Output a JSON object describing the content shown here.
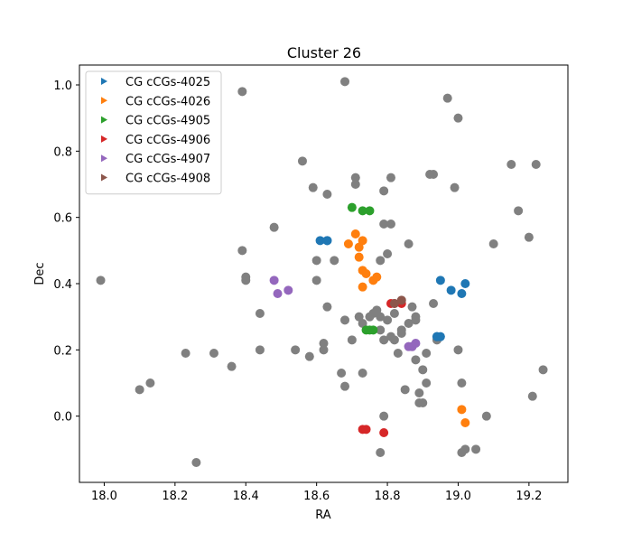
{
  "chart_data": {
    "type": "scatter",
    "title": "Cluster 26",
    "xlabel": "RA",
    "ylabel": "Dec",
    "xlim": [
      17.93,
      19.31
    ],
    "ylim": [
      -0.2,
      1.06
    ],
    "xticks": [
      18.0,
      18.2,
      18.4,
      18.6,
      18.8,
      19.0,
      19.2
    ],
    "xtick_labels": [
      "18.0",
      "18.2",
      "18.4",
      "18.6",
      "18.8",
      "19.0",
      "19.2"
    ],
    "yticks": [
      0.0,
      0.2,
      0.4,
      0.6,
      0.8,
      1.0
    ],
    "ytick_labels": [
      "0.0",
      "0.2",
      "0.4",
      "0.6",
      "0.8",
      "1.0"
    ],
    "grid": false,
    "legend_position": "top-left",
    "background_points": {
      "color": "#808080",
      "x": [
        17.99,
        18.1,
        18.13,
        18.23,
        18.26,
        18.31,
        18.36,
        18.39,
        18.39,
        18.4,
        18.4,
        18.44,
        18.44,
        18.48,
        18.54,
        18.56,
        18.58,
        18.59,
        18.6,
        18.6,
        18.62,
        18.62,
        18.63,
        18.63,
        18.65,
        18.67,
        18.68,
        18.68,
        18.68,
        18.7,
        18.71,
        18.71,
        18.72,
        18.73,
        18.73,
        18.75,
        18.76,
        18.77,
        18.78,
        18.78,
        18.78,
        18.79,
        18.79,
        18.79,
        18.79,
        18.8,
        18.8,
        18.81,
        18.81,
        18.82,
        18.82,
        18.83,
        18.84,
        18.84,
        18.85,
        18.86,
        18.86,
        18.87,
        18.87,
        18.88,
        18.88,
        18.88,
        18.89,
        18.89,
        18.9,
        18.9,
        18.91,
        18.91,
        18.92,
        18.93,
        18.93,
        18.94,
        18.97,
        18.99,
        19.0,
        19.0,
        19.01,
        19.01,
        19.02,
        19.05,
        19.08,
        19.1,
        19.15,
        19.17,
        19.2,
        19.21,
        19.22,
        19.24,
        18.78,
        18.81
      ],
      "y": [
        0.41,
        0.08,
        0.1,
        0.19,
        -0.14,
        0.19,
        0.15,
        0.5,
        0.98,
        0.41,
        0.42,
        0.31,
        0.2,
        0.57,
        0.2,
        0.77,
        0.18,
        0.69,
        0.47,
        0.41,
        0.2,
        0.22,
        0.33,
        0.67,
        0.47,
        0.13,
        0.09,
        0.29,
        1.01,
        0.23,
        0.7,
        0.72,
        0.3,
        0.28,
        0.13,
        0.3,
        0.31,
        0.32,
        0.47,
        0.3,
        0.26,
        0.23,
        0.58,
        0.68,
        0.0,
        0.29,
        0.49,
        0.72,
        0.24,
        0.31,
        0.23,
        0.19,
        0.26,
        0.25,
        0.08,
        0.28,
        0.52,
        0.21,
        0.33,
        0.17,
        0.3,
        0.29,
        0.07,
        0.04,
        0.04,
        0.14,
        0.1,
        0.19,
        0.73,
        0.73,
        0.34,
        0.23,
        0.96,
        0.69,
        0.9,
        0.2,
        -0.11,
        0.1,
        -0.1,
        -0.1,
        0.0,
        0.52,
        0.76,
        0.62,
        0.54,
        0.06,
        0.76,
        0.14,
        -0.11,
        0.58
      ]
    },
    "series": [
      {
        "name": "CG cCGs-4025",
        "color": "#1f77b4",
        "x": [
          18.61,
          18.63,
          18.63,
          18.95,
          18.98,
          19.01,
          19.02,
          18.94,
          18.95,
          18.94
        ],
        "y": [
          0.53,
          0.53,
          0.53,
          0.41,
          0.38,
          0.37,
          0.4,
          0.24,
          0.24,
          0.24
        ]
      },
      {
        "name": "CG cCGs-4026",
        "color": "#ff7f0e",
        "x": [
          18.71,
          18.72,
          18.72,
          18.73,
          18.73,
          18.73,
          18.74,
          18.76,
          18.77,
          18.69,
          19.01,
          19.02
        ],
        "y": [
          0.55,
          0.51,
          0.48,
          0.53,
          0.44,
          0.39,
          0.43,
          0.41,
          0.42,
          0.52,
          0.02,
          -0.02
        ]
      },
      {
        "name": "CG cCGs-4905",
        "color": "#2ca02c",
        "x": [
          18.7,
          18.73,
          18.75,
          18.74,
          18.75,
          18.76
        ],
        "y": [
          0.63,
          0.62,
          0.62,
          0.26,
          0.26,
          0.26
        ]
      },
      {
        "name": "CG cCGs-4906",
        "color": "#d62728",
        "x": [
          18.73,
          18.74,
          18.79,
          18.81,
          18.82,
          18.84
        ],
        "y": [
          -0.04,
          -0.04,
          -0.05,
          0.34,
          0.34,
          0.34
        ]
      },
      {
        "name": "CG cCGs-4907",
        "color": "#9467bd",
        "x": [
          18.48,
          18.49,
          18.52,
          18.87,
          18.86,
          18.88
        ],
        "y": [
          0.41,
          0.37,
          0.38,
          0.21,
          0.21,
          0.22
        ]
      },
      {
        "name": "CG cCGs-4908",
        "color": "#8c564b",
        "x": [
          18.82,
          18.84
        ],
        "y": [
          0.34,
          0.35
        ]
      }
    ]
  }
}
